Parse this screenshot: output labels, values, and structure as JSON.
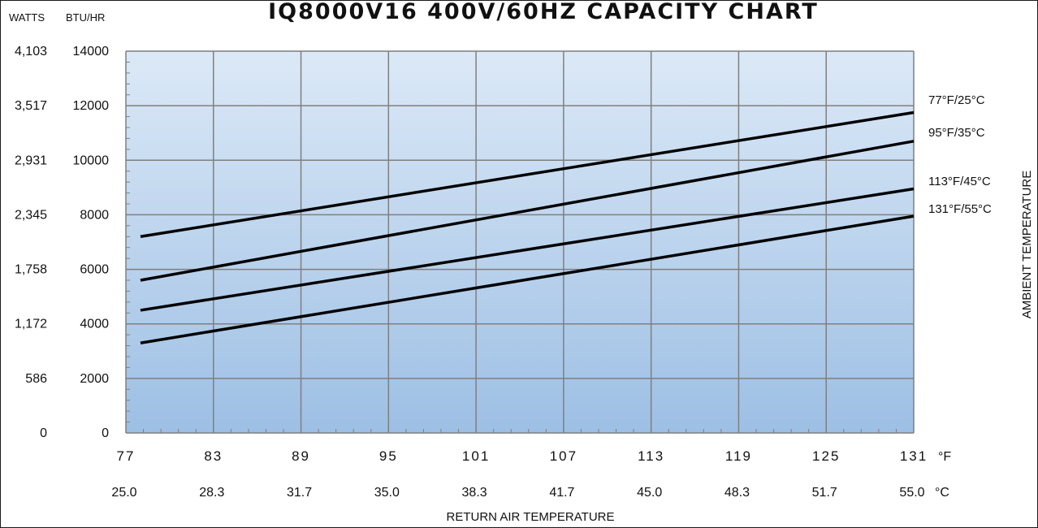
{
  "chart_data": {
    "type": "line",
    "title": "IQ8000V16 400V/60HZ CAPACITY CHART",
    "y_left_unit": "WATTS",
    "y_unit": "BTU/HR",
    "ylim": [
      0,
      14000
    ],
    "y_ticks": [
      "0",
      "2000",
      "4000",
      "6000",
      "8000",
      "10000",
      "12000",
      "14000"
    ],
    "y_ticks_watts": [
      "0",
      "586",
      "1,172",
      "1,758",
      "2,345",
      "2,931",
      "3,517",
      "4,103"
    ],
    "xlim": [
      77,
      131
    ],
    "x_ticks_f": [
      "77",
      "83",
      "89",
      "95",
      "101",
      "107",
      "113",
      "119",
      "125",
      "131"
    ],
    "x_ticks_c": [
      "25.0",
      "28.3",
      "31.7",
      "35.0",
      "38.3",
      "41.7",
      "45.0",
      "48.3",
      "51.7",
      "55.0"
    ],
    "x_unit_f": "°F",
    "x_unit_c": "°C",
    "xlabel": "RETURN AIR TEMPERATURE",
    "right_label": "AMBIENT TEMPERATURE",
    "grid": true,
    "series": [
      {
        "name": "77°F/25°C",
        "x": [
          78,
          131
        ],
        "y": [
          7200,
          11750
        ]
      },
      {
        "name": "95°F/35°C",
        "x": [
          78,
          131
        ],
        "y": [
          5600,
          10700
        ]
      },
      {
        "name": "113°F/45°C",
        "x": [
          78,
          131
        ],
        "y": [
          4500,
          8950
        ]
      },
      {
        "name": "131°F/55°C",
        "x": [
          78,
          131
        ],
        "y": [
          3300,
          7950
        ]
      }
    ],
    "colors": {
      "line": "#000000",
      "grid": "#7f7f7f",
      "plot_top": "#dce9f7",
      "plot_bottom": "#9dbfe4"
    }
  }
}
